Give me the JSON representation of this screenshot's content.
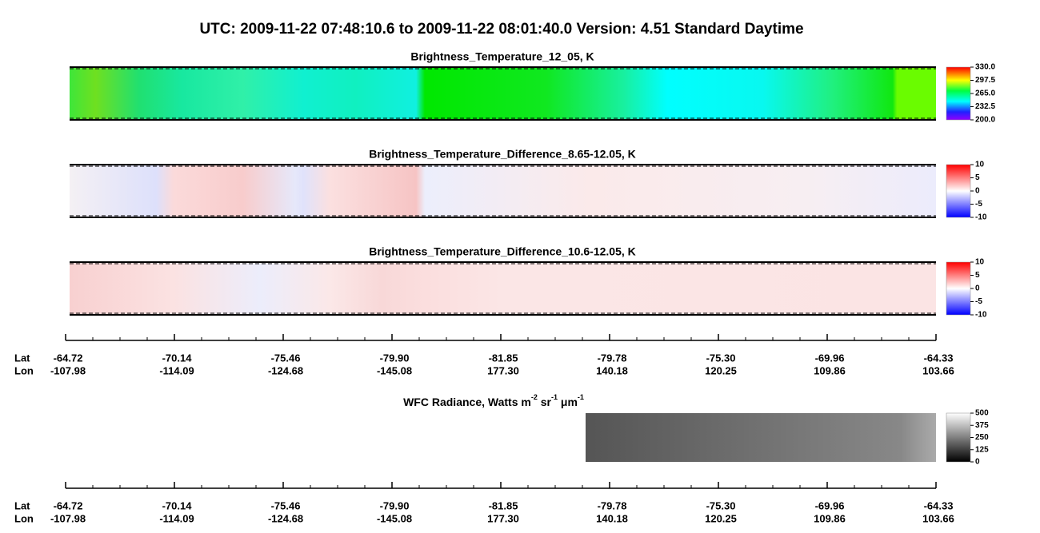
{
  "title": "UTC:  2009-11-22   07:48:10.6  to  2009-11-22   08:01:40.0    Version: 4.51  Standard Daytime",
  "panels": [
    {
      "title": "Brightness_Temperature_12_05, K",
      "colorbar_ticks": [
        {
          "value": 330,
          "label": "330.0"
        },
        297.5,
        {
          "value": 265,
          "label": "265.0"
        },
        232.5,
        {
          "value": 200,
          "label": "200.0"
        }
      ]
    },
    {
      "title": "Brightness_Temperature_Difference_8.65-12.05, K",
      "colorbar_ticks": [
        10,
        5,
        0,
        -5,
        -10
      ]
    },
    {
      "title": "Brightness_Temperature_Difference_10.6-12.05, K",
      "colorbar_ticks": [
        10,
        5,
        0,
        -5,
        -10
      ]
    }
  ],
  "wfc": {
    "title_parts": [
      "WFC Radiance, Watts m",
      "-2",
      " sr",
      "-1",
      " μm",
      "-1"
    ],
    "colorbar_ticks": [
      500,
      375,
      250,
      125,
      0
    ]
  },
  "axis": {
    "lat_label": "Lat",
    "lon_label": "Lon",
    "lat": [
      "-64.72",
      "-70.14",
      "-75.46",
      "-79.90",
      "-81.85",
      "-79.78",
      "-75.30",
      "-69.96",
      "-64.33"
    ],
    "lon": [
      "-107.98",
      "-114.09",
      "-124.68",
      "-145.08",
      "177.30",
      "140.18",
      "120.25",
      "109.86",
      "103.66"
    ]
  }
}
